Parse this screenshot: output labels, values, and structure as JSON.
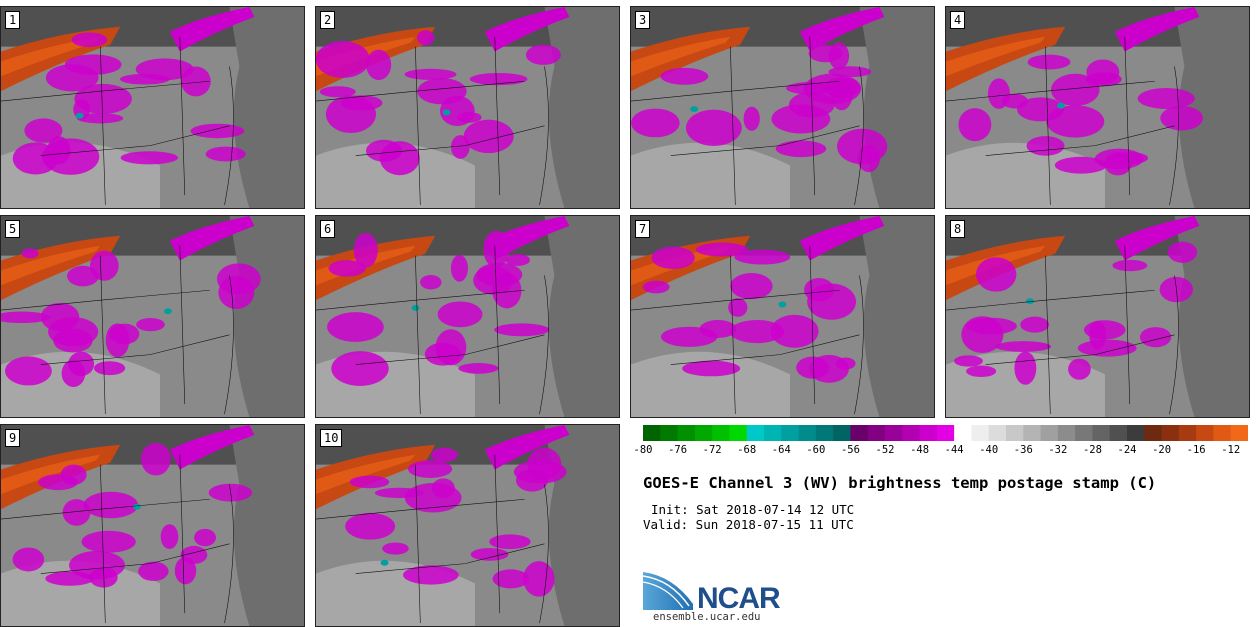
{
  "panels": [
    {
      "label": "1"
    },
    {
      "label": "2"
    },
    {
      "label": "3"
    },
    {
      "label": "4"
    },
    {
      "label": "5"
    },
    {
      "label": "6"
    },
    {
      "label": "7"
    },
    {
      "label": "8"
    },
    {
      "label": "9"
    },
    {
      "label": "10"
    }
  ],
  "colorbar": {
    "values": [
      -80,
      -78,
      -76,
      -74,
      -72,
      -70,
      -68,
      -66,
      -64,
      -62,
      -60,
      -58,
      -56,
      -54,
      -52,
      -50,
      -48,
      -46,
      -44,
      -42,
      -40,
      -38,
      -36,
      -34,
      -32,
      -30,
      -28,
      -26,
      -24,
      -22,
      -20,
      -18,
      -16,
      -14,
      -12,
      -10
    ],
    "tick_labels": [
      "-80",
      "-76",
      "-72",
      "-68",
      "-64",
      "-60",
      "-56",
      "-52",
      "-48",
      "-44",
      "-40",
      "-36",
      "-32",
      "-28",
      "-24",
      "-20",
      "-16",
      "-12"
    ],
    "colors": [
      "#006400",
      "#007a00",
      "#009000",
      "#00a800",
      "#00c000",
      "#00d800",
      "#00c8c8",
      "#00b4b4",
      "#00a0a0",
      "#008c8c",
      "#007878",
      "#006464",
      "#6a006a",
      "#820082",
      "#9a009a",
      "#b200b2",
      "#cc00cc",
      "#e400e4",
      "#ffffff",
      "#eeeeee",
      "#dcdcdc",
      "#c8c8c8",
      "#b4b4b4",
      "#a0a0a0",
      "#8c8c8c",
      "#787878",
      "#646464",
      "#505050",
      "#3c3c3c",
      "#6e2a10",
      "#8a3010",
      "#a83a12",
      "#c84814",
      "#e05a16",
      "#f06818",
      "#cc3300"
    ]
  },
  "title": "GOES-E Channel 3 (WV) brightness temp postage stamp (C)",
  "init": "Init: Sat 2018-07-14 12 UTC",
  "valid": "Valid: Sun 2018-07-15 11 UTC",
  "logo": {
    "text": "NCAR",
    "url": "ensemble.ucar.edu",
    "color": "#1f4e8c"
  }
}
